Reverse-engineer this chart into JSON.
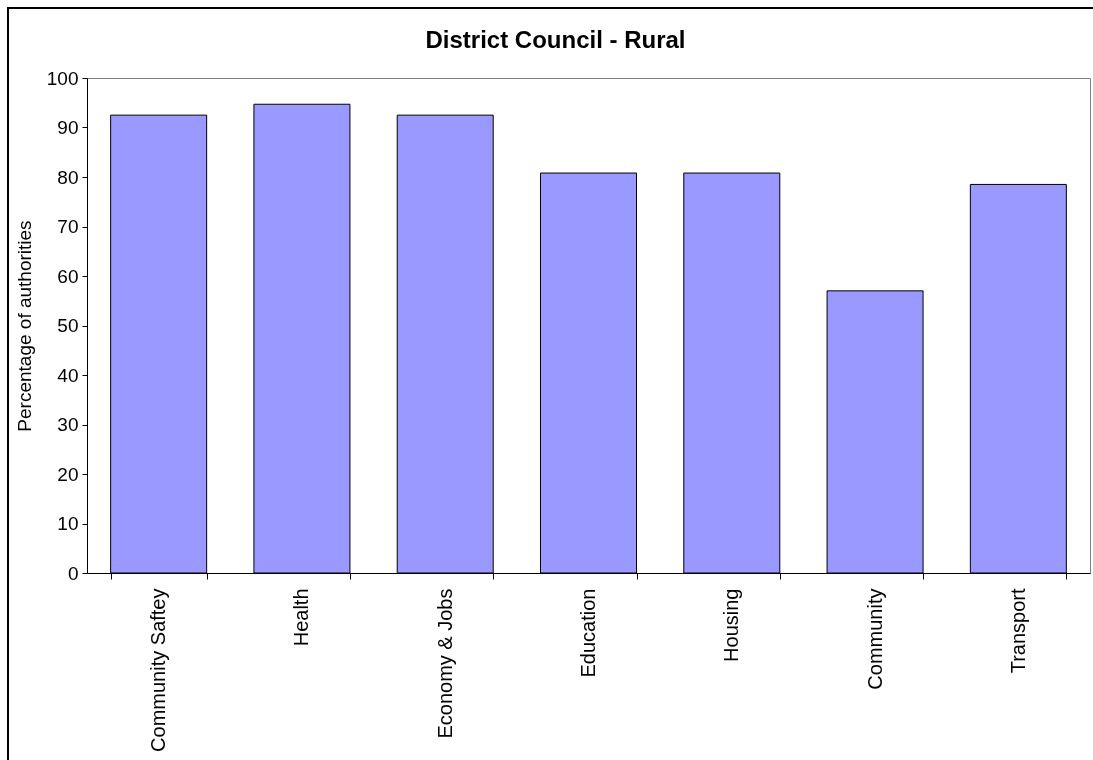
{
  "chart_data": {
    "type": "bar",
    "title": "District Council - Rural",
    "ylabel": "Percentage of authorities",
    "categories": [
      "Community Saftey",
      "Health",
      "Economy & Jobs",
      "Education",
      "Housing",
      "Community",
      "Transport"
    ],
    "values": [
      92.5,
      94.7,
      92.5,
      80.8,
      80.8,
      57.0,
      78.5
    ],
    "color": "#9999ff",
    "ylim": [
      0,
      100
    ],
    "yticks": [
      0,
      10,
      20,
      30,
      40,
      50,
      60,
      70,
      80,
      90,
      100
    ]
  }
}
